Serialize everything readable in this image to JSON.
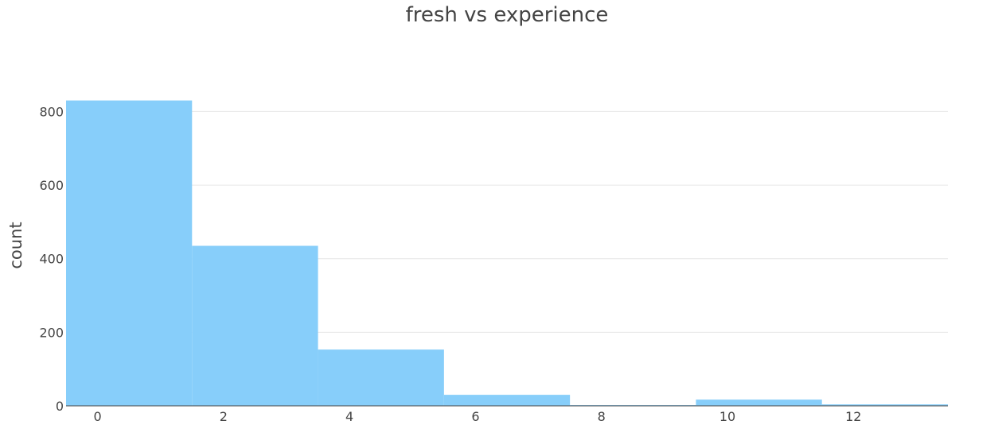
{
  "chart_data": {
    "type": "bar",
    "title": "fresh vs experience",
    "xlabel": "",
    "ylabel": "count",
    "bin_edges": [
      -0.5,
      1.5,
      3.5,
      5.5,
      7.5,
      9.5,
      11.5,
      13.5
    ],
    "values": [
      830,
      435,
      153,
      30,
      2,
      17,
      4
    ],
    "xlim": [
      -0.5,
      13.5
    ],
    "ylim": [
      0,
      870
    ],
    "x_ticks": [
      "0",
      "2",
      "4",
      "6",
      "8",
      "10",
      "12"
    ],
    "y_ticks": [
      "0",
      "200",
      "400",
      "600",
      "800"
    ],
    "bar_color": "#87CEFA",
    "grid": true
  }
}
